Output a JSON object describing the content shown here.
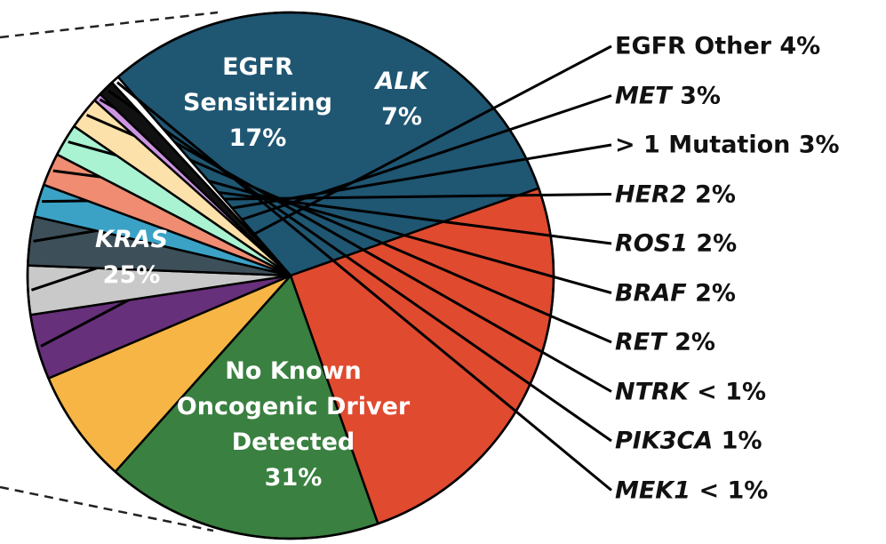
{
  "chart_data": {
    "type": "pie",
    "categories": [
      "No Known Oncogenic Driver Detected",
      "KRAS",
      "EGFR Sensitizing",
      "ALK",
      "EGFR Other",
      "MET",
      "> 1 Mutation",
      "HER2",
      "ROS1",
      "BRAF",
      "RET",
      "NTRK",
      "PIK3CA",
      "MEK1"
    ],
    "values": [
      31,
      25,
      17,
      7,
      4,
      3,
      3,
      2,
      2,
      2,
      2,
      0.5,
      1,
      0.5
    ],
    "value_labels": [
      "31%",
      "25%",
      "17%",
      "7%",
      "4%",
      "3%",
      "3%",
      "2%",
      "2%",
      "2%",
      "2%",
      "< 1%",
      "1%",
      "< 1%"
    ],
    "colors": [
      "#1f5672",
      "#e04a2f",
      "#3a8040",
      "#f6b545",
      "#67307a",
      "#c9c9c9",
      "#3d4f59",
      "#3ba2c6",
      "#ef8c71",
      "#a9f2d2",
      "#fde1aa",
      "#cd95e2",
      "#111111",
      "#ffffff"
    ],
    "italic": [
      false,
      true,
      false,
      true,
      false,
      true,
      false,
      true,
      true,
      true,
      true,
      true,
      true,
      true
    ]
  }
}
